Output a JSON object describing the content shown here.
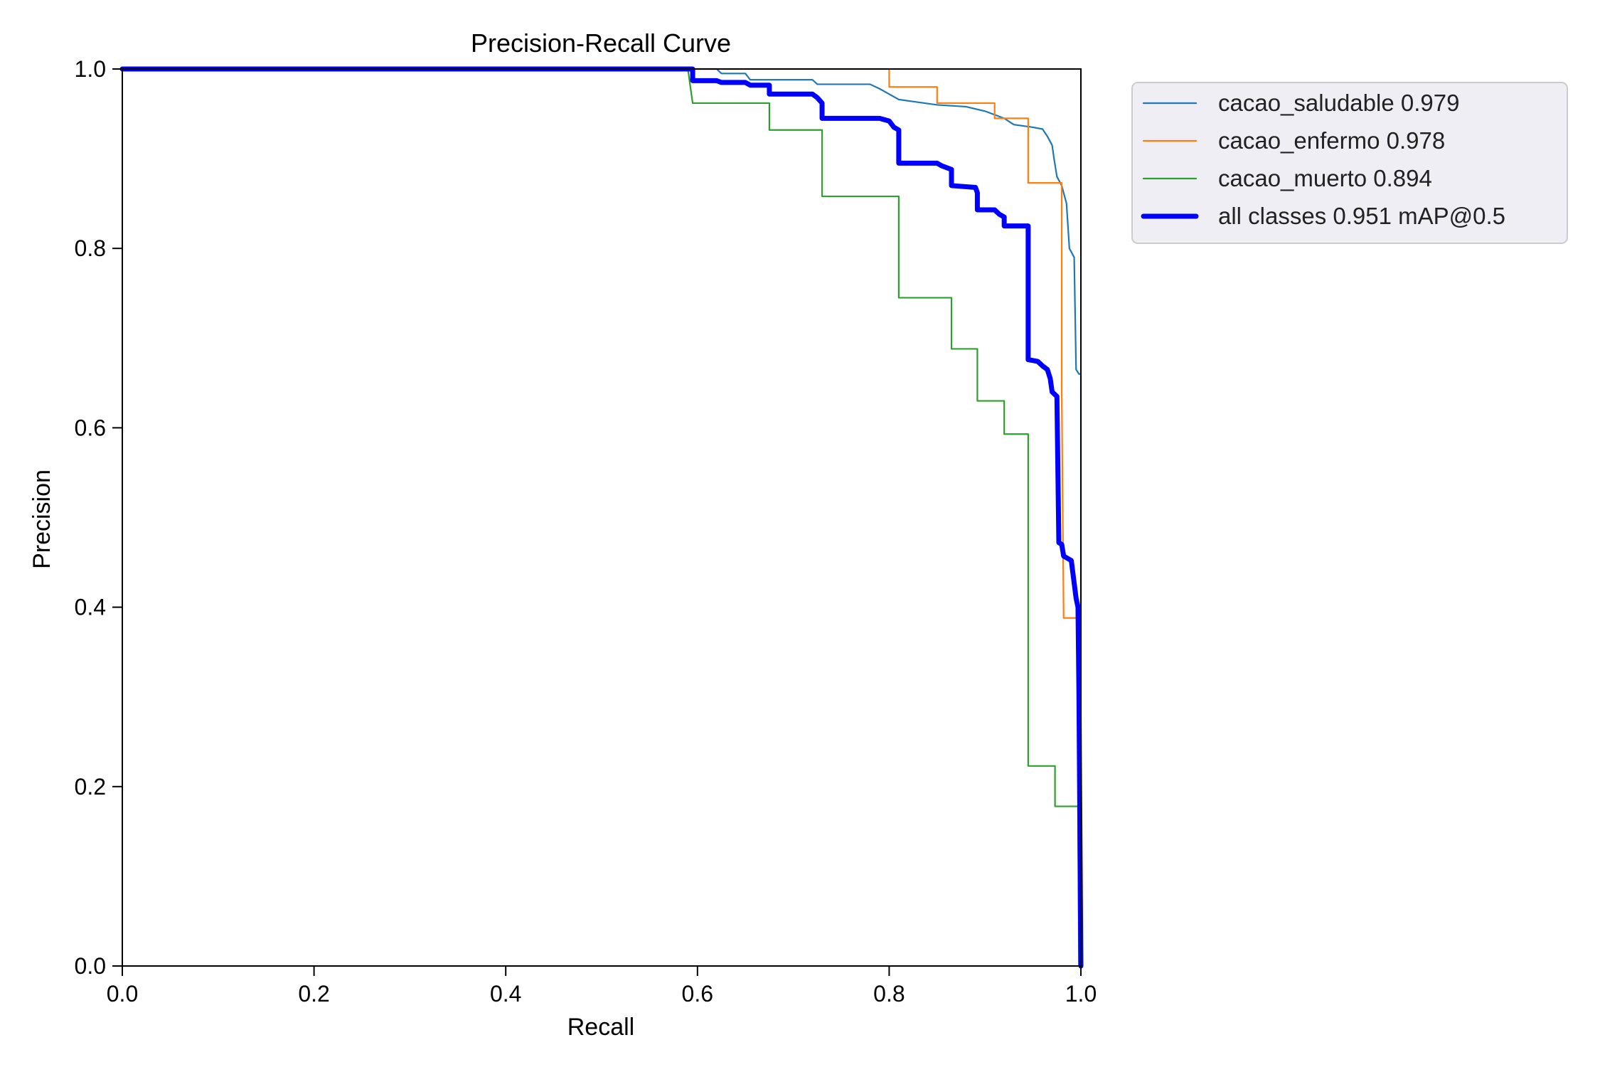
{
  "chart_data": {
    "type": "line",
    "title": "Precision-Recall Curve",
    "xlabel": "Recall",
    "ylabel": "Precision",
    "xlim": [
      0,
      1
    ],
    "ylim": [
      0,
      1
    ],
    "x_ticks": [
      "0.0",
      "0.2",
      "0.4",
      "0.6",
      "0.8",
      "1.0"
    ],
    "y_ticks": [
      "0.0",
      "0.2",
      "0.4",
      "0.6",
      "0.8",
      "1.0"
    ],
    "grid": false,
    "legend_position": "outside-top-right",
    "series": [
      {
        "name": "cacao_saludable 0.979",
        "color": "#1f77b4",
        "line_width": "thin",
        "points": [
          [
            0.0,
            1.0
          ],
          [
            0.6,
            1.0
          ],
          [
            0.62,
            1.0
          ],
          [
            0.625,
            0.995
          ],
          [
            0.65,
            0.995
          ],
          [
            0.655,
            0.988
          ],
          [
            0.72,
            0.988
          ],
          [
            0.725,
            0.983
          ],
          [
            0.78,
            0.983
          ],
          [
            0.79,
            0.978
          ],
          [
            0.8,
            0.972
          ],
          [
            0.81,
            0.966
          ],
          [
            0.83,
            0.963
          ],
          [
            0.85,
            0.96
          ],
          [
            0.88,
            0.958
          ],
          [
            0.9,
            0.953
          ],
          [
            0.92,
            0.945
          ],
          [
            0.93,
            0.938
          ],
          [
            0.95,
            0.935
          ],
          [
            0.96,
            0.933
          ],
          [
            0.965,
            0.925
          ],
          [
            0.97,
            0.915
          ],
          [
            0.972,
            0.9
          ],
          [
            0.975,
            0.88
          ],
          [
            0.98,
            0.87
          ],
          [
            0.985,
            0.85
          ],
          [
            0.988,
            0.8
          ],
          [
            0.993,
            0.79
          ],
          [
            0.995,
            0.665
          ],
          [
            0.998,
            0.66
          ],
          [
            1.0,
            0.66
          ],
          [
            1.0,
            0.0
          ]
        ]
      },
      {
        "name": "cacao_enfermo 0.978",
        "color": "#ff7f0e",
        "line_width": "thin",
        "points": [
          [
            0.0,
            1.0
          ],
          [
            0.8,
            1.0
          ],
          [
            0.8,
            0.98
          ],
          [
            0.85,
            0.98
          ],
          [
            0.85,
            0.962
          ],
          [
            0.91,
            0.962
          ],
          [
            0.91,
            0.945
          ],
          [
            0.945,
            0.945
          ],
          [
            0.945,
            0.873
          ],
          [
            0.98,
            0.873
          ],
          [
            0.98,
            0.64
          ],
          [
            0.982,
            0.388
          ],
          [
            0.998,
            0.388
          ],
          [
            1.0,
            0.0
          ]
        ]
      },
      {
        "name": "cacao_muerto 0.894",
        "color": "#2ca02c",
        "line_width": "thin",
        "points": [
          [
            0.0,
            1.0
          ],
          [
            0.59,
            1.0
          ],
          [
            0.595,
            0.962
          ],
          [
            0.675,
            0.962
          ],
          [
            0.675,
            0.932
          ],
          [
            0.73,
            0.932
          ],
          [
            0.73,
            0.858
          ],
          [
            0.81,
            0.858
          ],
          [
            0.81,
            0.745
          ],
          [
            0.865,
            0.745
          ],
          [
            0.865,
            0.688
          ],
          [
            0.892,
            0.688
          ],
          [
            0.892,
            0.63
          ],
          [
            0.92,
            0.63
          ],
          [
            0.92,
            0.593
          ],
          [
            0.945,
            0.593
          ],
          [
            0.945,
            0.223
          ],
          [
            0.973,
            0.223
          ],
          [
            0.973,
            0.178
          ],
          [
            0.997,
            0.178
          ],
          [
            0.998,
            0.0
          ]
        ]
      },
      {
        "name": "all classes 0.951 mAP@0.5",
        "color": "#0000ff",
        "line_width": "thick",
        "points": [
          [
            0.0,
            1.0
          ],
          [
            0.595,
            1.0
          ],
          [
            0.595,
            0.987
          ],
          [
            0.62,
            0.987
          ],
          [
            0.625,
            0.985
          ],
          [
            0.65,
            0.985
          ],
          [
            0.655,
            0.982
          ],
          [
            0.675,
            0.982
          ],
          [
            0.675,
            0.972
          ],
          [
            0.72,
            0.972
          ],
          [
            0.725,
            0.968
          ],
          [
            0.73,
            0.962
          ],
          [
            0.73,
            0.945
          ],
          [
            0.79,
            0.945
          ],
          [
            0.8,
            0.942
          ],
          [
            0.805,
            0.935
          ],
          [
            0.81,
            0.932
          ],
          [
            0.81,
            0.895
          ],
          [
            0.85,
            0.895
          ],
          [
            0.855,
            0.892
          ],
          [
            0.865,
            0.888
          ],
          [
            0.865,
            0.87
          ],
          [
            0.89,
            0.868
          ],
          [
            0.892,
            0.862
          ],
          [
            0.892,
            0.843
          ],
          [
            0.91,
            0.843
          ],
          [
            0.915,
            0.838
          ],
          [
            0.92,
            0.835
          ],
          [
            0.92,
            0.825
          ],
          [
            0.945,
            0.825
          ],
          [
            0.945,
            0.676
          ],
          [
            0.955,
            0.674
          ],
          [
            0.96,
            0.669
          ],
          [
            0.965,
            0.665
          ],
          [
            0.968,
            0.655
          ],
          [
            0.97,
            0.64
          ],
          [
            0.975,
            0.635
          ],
          [
            0.977,
            0.472
          ],
          [
            0.98,
            0.47
          ],
          [
            0.982,
            0.457
          ],
          [
            0.99,
            0.452
          ],
          [
            0.995,
            0.41
          ],
          [
            0.997,
            0.4
          ],
          [
            0.998,
            0.3
          ],
          [
            1.0,
            0.0
          ]
        ]
      }
    ]
  }
}
